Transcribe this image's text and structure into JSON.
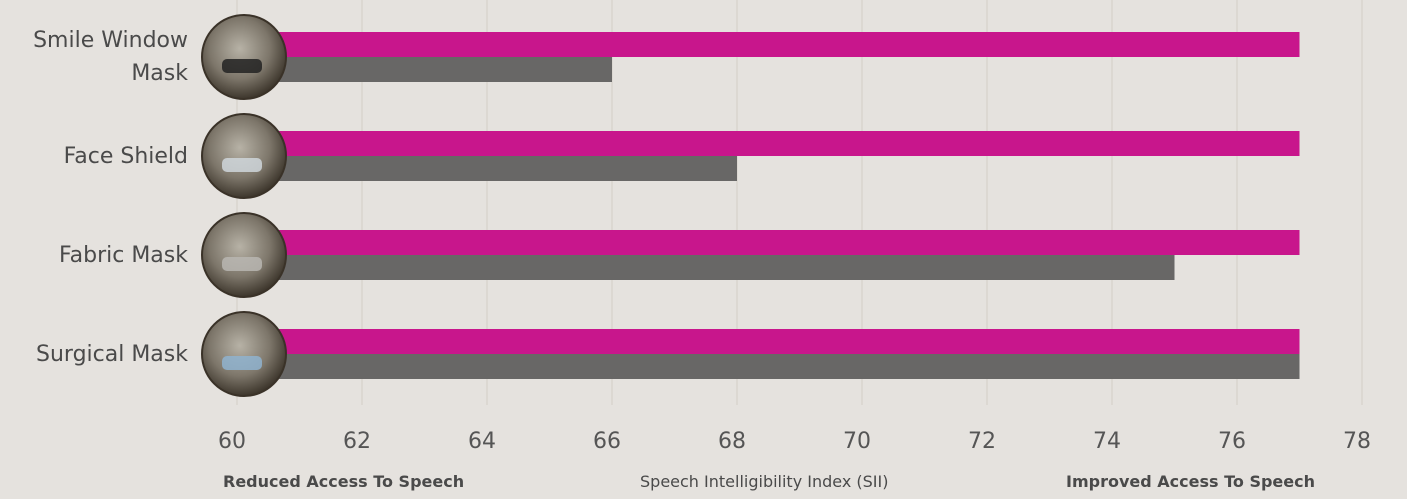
{
  "chart_data": {
    "type": "bar",
    "orientation": "horizontal",
    "categories": [
      "Smile Window Mask",
      "Face Shield",
      "Fabric Mask",
      "Surgical Mask"
    ],
    "series": [
      {
        "color": "#c8168c",
        "values": [
          77,
          77,
          77,
          77
        ]
      },
      {
        "color": "#686766",
        "values": [
          66,
          68,
          75,
          77
        ]
      }
    ],
    "xlim": [
      60,
      78
    ],
    "xticks": [
      60,
      62,
      64,
      66,
      68,
      70,
      72,
      74,
      76,
      78
    ],
    "xlabel": "Speech Intelligibility Index (SII)",
    "annotations": [
      "Reduced Access To Speech",
      "Improved Access To Speech"
    ],
    "grid": true
  }
}
